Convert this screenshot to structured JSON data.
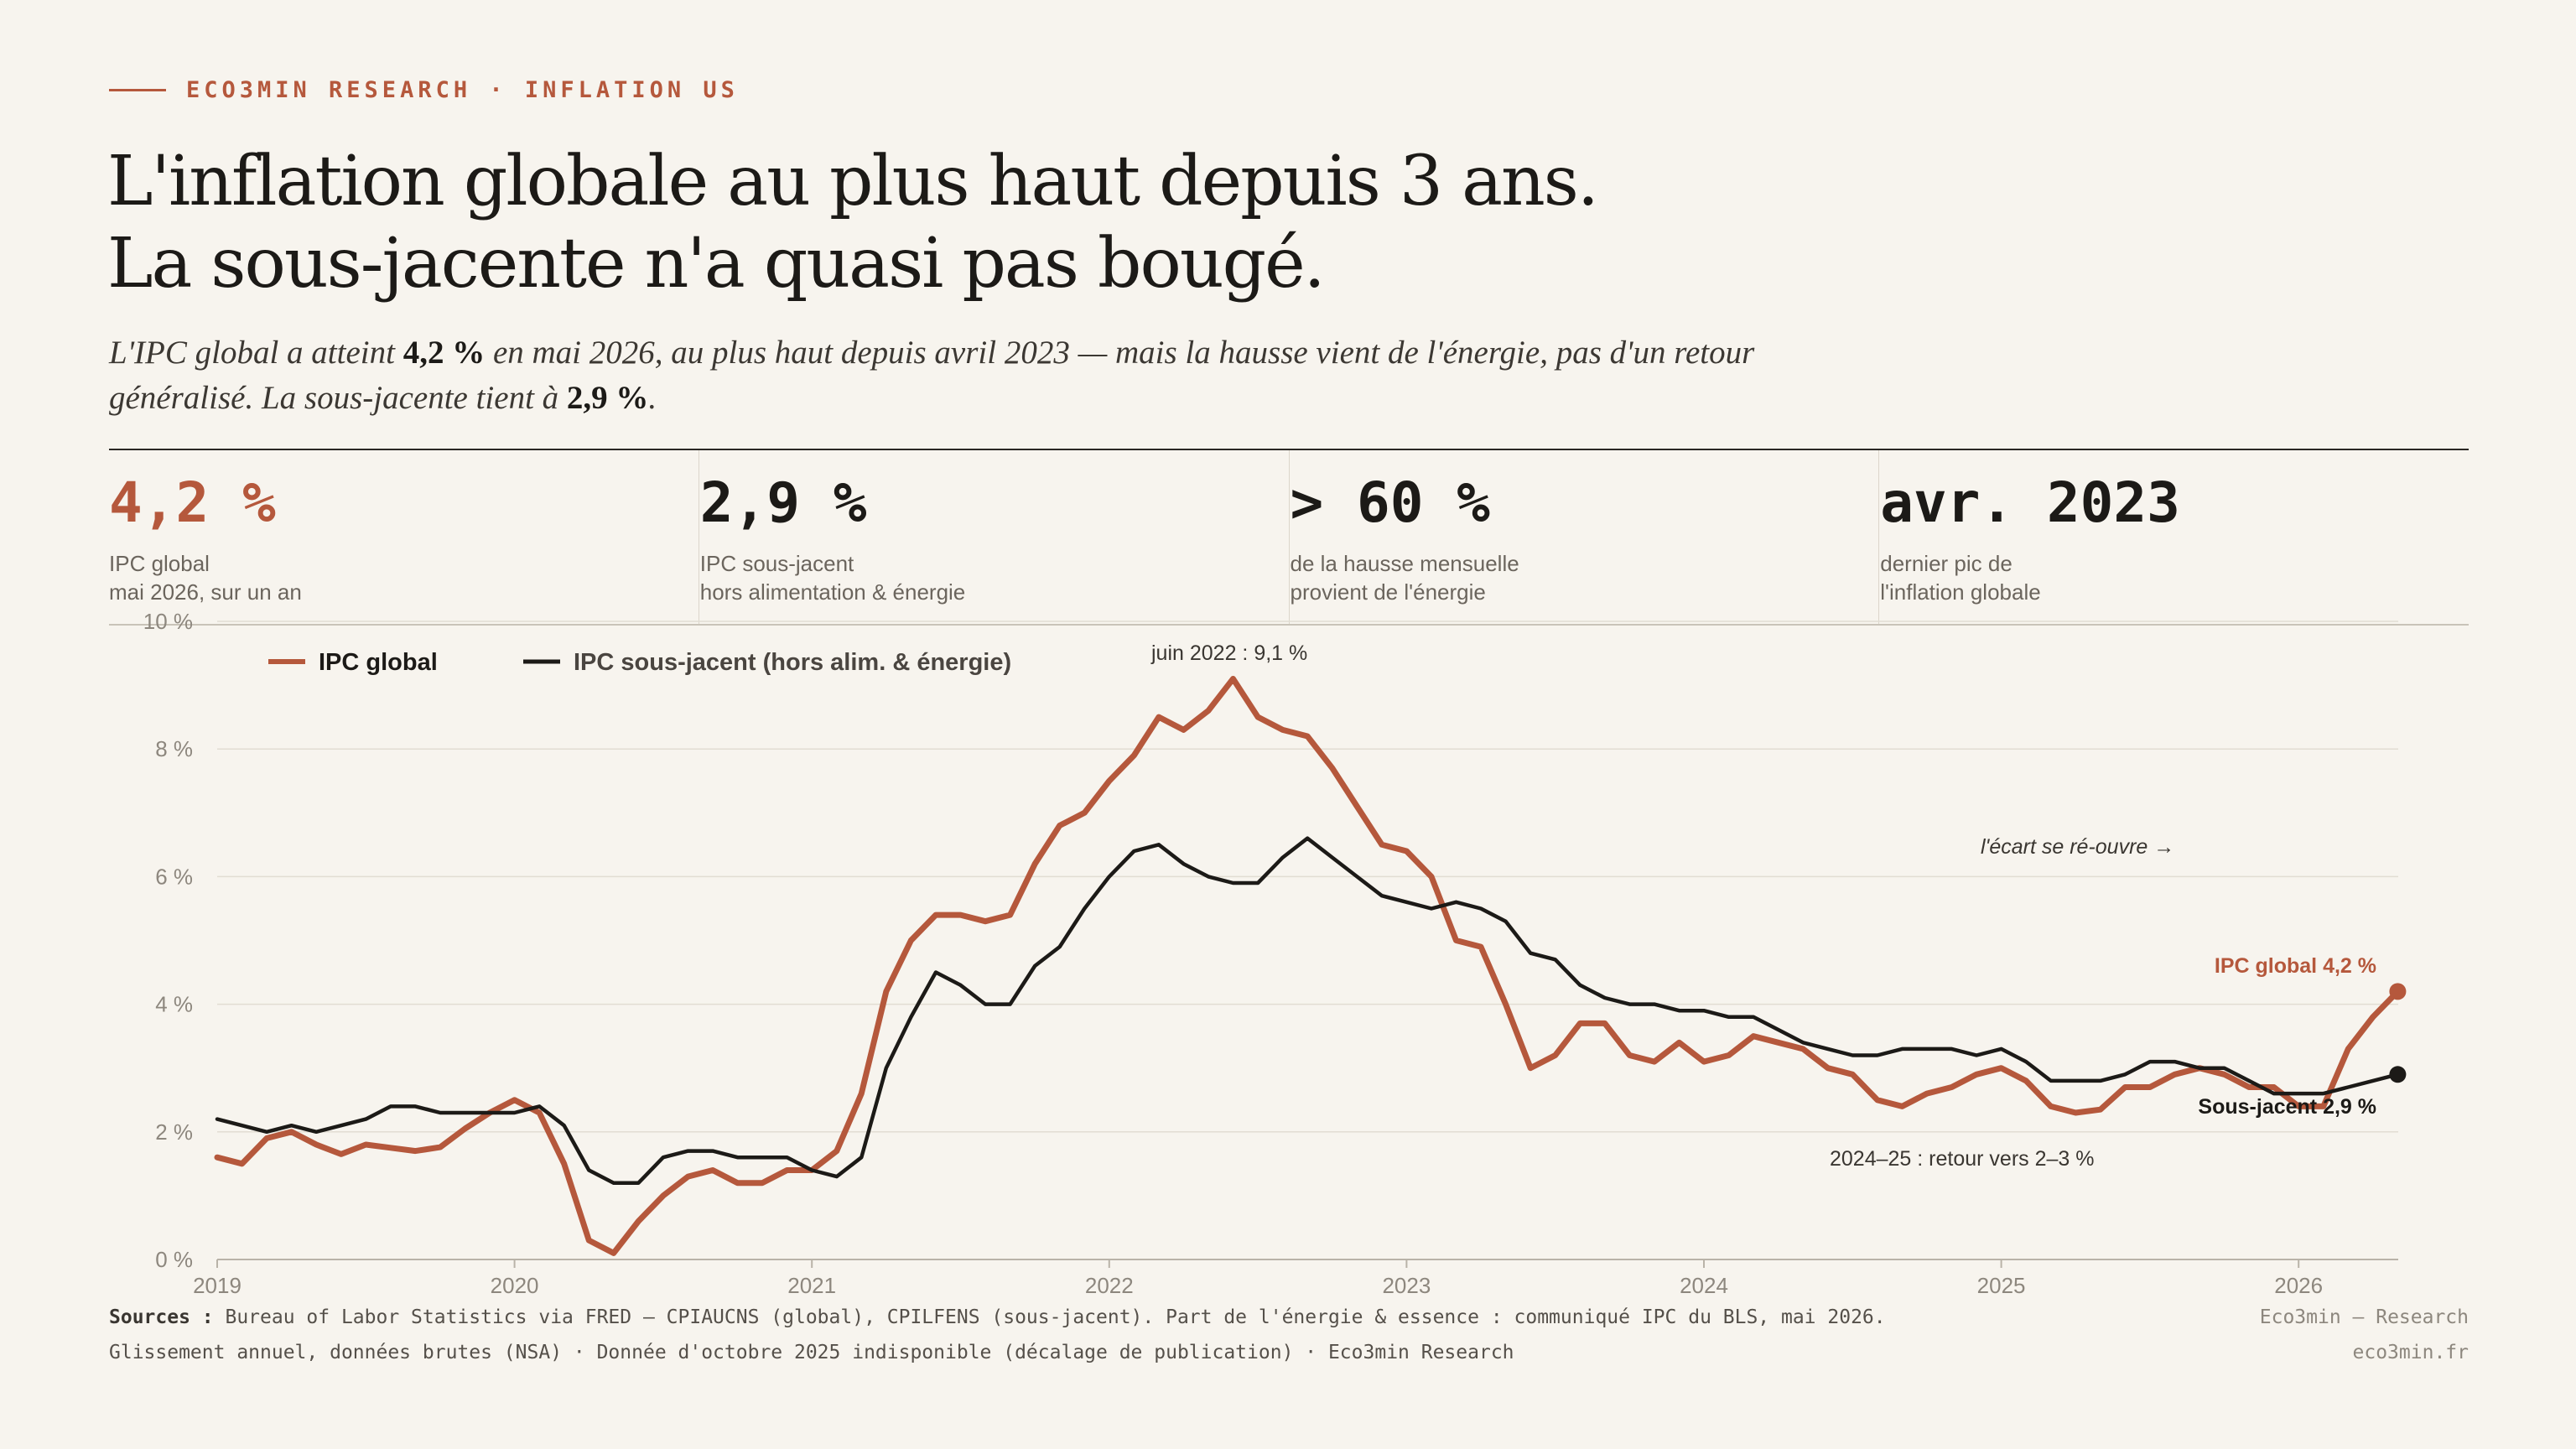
{
  "kicker": "ECO3MIN RESEARCH · INFLATION US",
  "title": {
    "line1": "L'inflation globale au plus haut depuis 3 ans.",
    "line2": "La sous-jacente n'a quasi pas bougé."
  },
  "lede": {
    "p1": "L'IPC global a atteint ",
    "b1": "4,2 %",
    "p2": " en mai 2026, au plus haut depuis avril 2023 — mais la hausse vient de l'énergie, pas d'un retour généralisé. La sous-jacente tient à ",
    "b2": "2,9 %",
    "p3": "."
  },
  "kpis": [
    {
      "value": "4,2 %",
      "label": "IPC global\nmai 2026, sur un an"
    },
    {
      "value": "2,9 %",
      "label": "IPC sous-jacent\nhors alimentation & énergie"
    },
    {
      "value": "> 60 %",
      "label": "de la hausse mensuelle\nprovient de l'énergie"
    },
    {
      "value": "avr. 2023",
      "label": "dernier pic de\nl'inflation globale"
    }
  ],
  "colors": {
    "accent": "#b5583c",
    "core": "#1c1a17",
    "grid": "#e2ddd3",
    "axis": "#8d877e"
  },
  "chart_data": {
    "type": "line",
    "x_start": "2019-01",
    "x_frequency": "monthly",
    "xlabel": "",
    "ylabel": "",
    "ylim": [
      0,
      10
    ],
    "y_ticks": [
      "0 %",
      "2 %",
      "4 %",
      "6 %",
      "8 %",
      "10 %"
    ],
    "y_tick_values": [
      0,
      2,
      4,
      6,
      8,
      10
    ],
    "x_ticks": [
      "2019",
      "2020",
      "2021",
      "2022",
      "2023",
      "2024",
      "2025",
      "2026"
    ],
    "grid": true,
    "legend_position": "top-left",
    "series": [
      {
        "name": "IPC global",
        "color": "#b5583c",
        "values": [
          1.6,
          1.5,
          1.9,
          2.0,
          1.8,
          1.65,
          1.8,
          1.75,
          1.7,
          1.76,
          2.05,
          2.3,
          2.5,
          2.3,
          1.5,
          0.3,
          0.1,
          0.6,
          1.0,
          1.3,
          1.4,
          1.2,
          1.2,
          1.4,
          1.4,
          1.7,
          2.6,
          4.2,
          5.0,
          5.4,
          5.4,
          5.3,
          5.4,
          6.2,
          6.8,
          7.0,
          7.5,
          7.9,
          8.5,
          8.3,
          8.6,
          9.1,
          8.5,
          8.3,
          8.2,
          7.7,
          7.1,
          6.5,
          6.4,
          6.0,
          5.0,
          4.9,
          4.0,
          3.0,
          3.2,
          3.7,
          3.7,
          3.2,
          3.1,
          3.4,
          3.1,
          3.2,
          3.5,
          3.4,
          3.3,
          3.0,
          2.9,
          2.5,
          2.4,
          2.6,
          2.7,
          2.9,
          3.0,
          2.8,
          2.4,
          2.3,
          2.35,
          2.7,
          2.7,
          2.9,
          3.0,
          2.9,
          2.7,
          2.7,
          2.4,
          2.4,
          3.3,
          3.8,
          4.2
        ],
        "last_index": 88
      },
      {
        "name": "IPC sous-jacent (hors alim. & énergie)",
        "color": "#1c1a17",
        "values": [
          2.2,
          2.1,
          2.0,
          2.1,
          2.0,
          2.1,
          2.2,
          2.4,
          2.4,
          2.3,
          2.3,
          2.3,
          2.3,
          2.4,
          2.1,
          1.4,
          1.2,
          1.2,
          1.6,
          1.7,
          1.7,
          1.6,
          1.6,
          1.6,
          1.4,
          1.3,
          1.6,
          3.0,
          3.8,
          4.5,
          4.3,
          4.0,
          4.0,
          4.6,
          4.9,
          5.5,
          6.0,
          6.4,
          6.5,
          6.2,
          6.0,
          5.9,
          5.9,
          6.3,
          6.6,
          6.3,
          6.0,
          5.7,
          5.6,
          5.5,
          5.6,
          5.5,
          5.3,
          4.8,
          4.7,
          4.3,
          4.1,
          4.0,
          4.0,
          3.9,
          3.9,
          3.8,
          3.8,
          3.6,
          3.4,
          3.3,
          3.2,
          3.2,
          3.3,
          3.3,
          3.3,
          3.2,
          3.3,
          3.1,
          2.8,
          2.8,
          2.8,
          2.9,
          3.1,
          3.1,
          3.0,
          3.0,
          2.8,
          2.6,
          2.6,
          2.6,
          2.7,
          2.8,
          2.9
        ],
        "last_index": 88
      }
    ],
    "annotations": [
      {
        "text": "juin 2022 : 9,1 %",
        "x": "2022-06",
        "y": 9.1
      },
      {
        "text": "l'écart se ré-ouvre →",
        "x": "2025-01",
        "y": 6.4
      },
      {
        "text": "IPC global 4,2 %",
        "x": "2026-05",
        "y": 4.2
      },
      {
        "text": "Sous-jacent 2,9 %",
        "x": "2026-05",
        "y": 2.9
      },
      {
        "text": "2024–25 : retour vers 2–3 %",
        "x": "2024-09",
        "y": 1.6
      }
    ]
  },
  "footer": {
    "sources_label": "Sources :",
    "sources_text": " Bureau of Labor Statistics via FRED — CPIAUCNS (global), CPILFENS (sous-jacent). Part de l'énergie & essence : communiqué IPC du BLS, mai 2026.",
    "right1": "Eco3min — Research",
    "line2": "Glissement annuel, données brutes (NSA) · Donnée d'octobre 2025 indisponible (décalage de publication) · Eco3min Research",
    "right2": "eco3min.fr"
  }
}
